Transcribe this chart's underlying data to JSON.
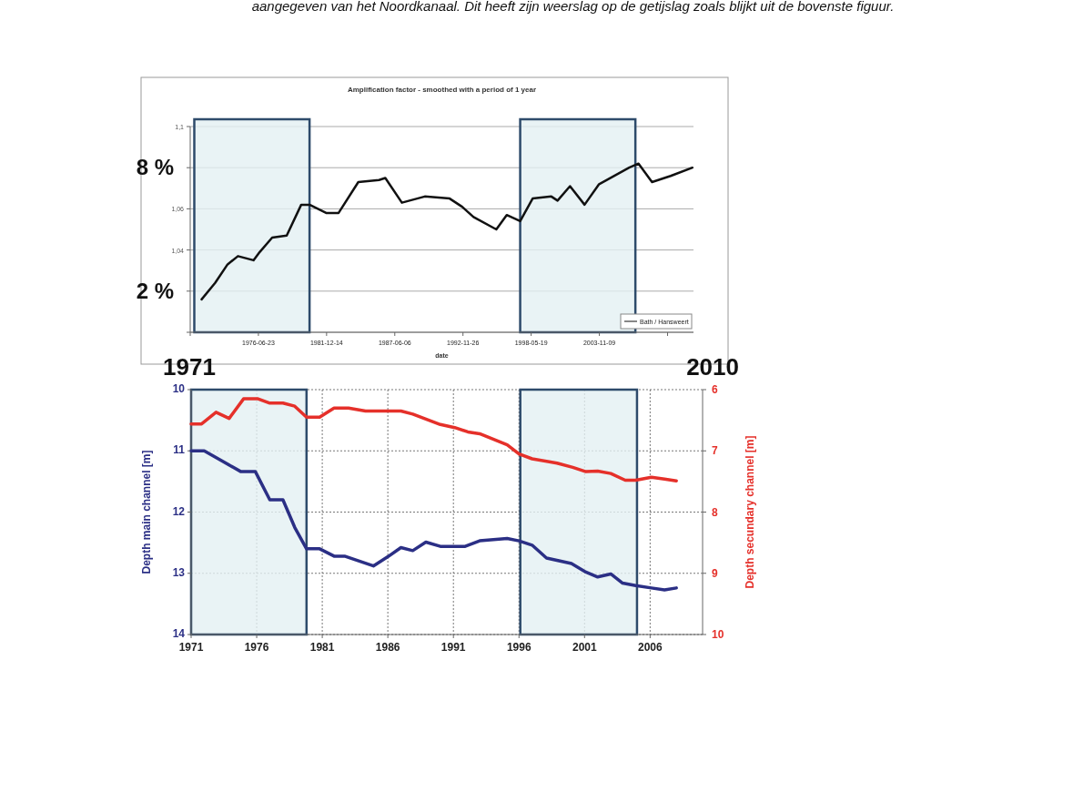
{
  "chart_data": [
    {
      "type": "line",
      "title": "Amplification factor - smoothed with a period of 1 year",
      "xlabel": "date",
      "legend": "bottom right",
      "grid": "y",
      "line_style": "solid",
      "annotations": [
        "aangegeven van het Noordkanaal. Dit heeft zijn weerslag op de getijslag zoals blijkt uit de bovenste figuur.",
        "1971",
        "2010",
        "8 %",
        "2 %"
      ],
      "xlim": [
        "1971-01-01",
        "2011-06-01"
      ],
      "xticks": [
        {
          "value": "1971-01-01",
          "label": null
        },
        "1976-06-23",
        "1981-12-14",
        "1987-06-06",
        "1992-11-26",
        "1998-05-19",
        "2003-11-09",
        {
          "value": "2009-05-02",
          "label": null
        }
      ],
      "ylim": [
        1.0,
        1.1
      ],
      "yticks": [
        {
          "value": 1.0,
          "label": null
        },
        {
          "value": 1.02,
          "label": null
        },
        {
          "value": 1.04,
          "label": "1,04"
        },
        {
          "value": 1.06,
          "label": "1,06"
        },
        {
          "value": 1.08,
          "label": null
        },
        {
          "value": 1.1,
          "label": "1,1"
        }
      ],
      "bands": [
        {
          "axis": "x",
          "from": "1971-05-01",
          "to": "1980-08-01",
          "color": "#e3f0f3"
        },
        {
          "axis": "x",
          "from": "1997-07-01",
          "to": "2006-10-01",
          "color": "#e3f0f3"
        }
      ],
      "series": [
        {
          "name": "Bath / Hansweert",
          "color": "#111111",
          "x": [
            "1971-12",
            "1973-01",
            "1974-01",
            "1974-11",
            "1976-02",
            "1976-08",
            "1977-08",
            "1978-10",
            "1979-12",
            "1980-08",
            "1981-12",
            "1982-12",
            "1984-07",
            "1986-03",
            "1986-09",
            "1988-01",
            "1989-11",
            "1991-11",
            "1992-11",
            "1993-10",
            "1995-08",
            "1996-06",
            "1997-07",
            "1998-07",
            "2000-01",
            "2000-07",
            "2001-07",
            "2002-09",
            "2003-11",
            "2006-04",
            "2007-01",
            "2008-02",
            "2009-08",
            "2011-05"
          ],
          "values": [
            1.016,
            1.024,
            1.033,
            1.037,
            1.035,
            1.039,
            1.046,
            1.047,
            1.062,
            1.062,
            1.058,
            1.058,
            1.073,
            1.074,
            1.075,
            1.063,
            1.066,
            1.065,
            1.061,
            1.056,
            1.05,
            1.057,
            1.054,
            1.065,
            1.066,
            1.064,
            1.071,
            1.062,
            1.072,
            1.08,
            1.082,
            1.073,
            1.076,
            1.08
          ]
        }
      ]
    },
    {
      "type": "line",
      "ylabel": "Depth main channel [m]",
      "y2label": "Depth secundary channel [m]",
      "grid": true,
      "line_style": "solid",
      "xlim": [
        1971,
        2010
      ],
      "xticks": [
        1971,
        1976,
        1981,
        1986,
        1991,
        1996,
        2001,
        2006
      ],
      "ylim": [
        14,
        10
      ],
      "yticks": [
        10,
        11,
        12,
        13,
        14
      ],
      "y2lim": [
        10,
        6
      ],
      "y2ticks": [
        6,
        7,
        8,
        9,
        10
      ],
      "bands": [
        {
          "axis": "x",
          "from": 1971,
          "to": 1979.8,
          "color": "#e3f0f3"
        },
        {
          "axis": "x",
          "from": 1996.1,
          "to": 2005,
          "color": "#e3f0f3"
        }
      ],
      "series": [
        {
          "color": "#2b2f85",
          "x": [
            1971,
            1972,
            1974.8,
            1975.9,
            1977,
            1978,
            1978.9,
            1979.8,
            1980.8,
            1981.9,
            1982.7,
            1984.9,
            1986,
            1987,
            1987.9,
            1988.9,
            1990,
            1991.9,
            1993,
            1995.1,
            1996,
            1997,
            1998.1,
            2000,
            2001.1,
            2002,
            2003,
            2003.9,
            2004.9,
            2006.1,
            2007.1,
            2008
          ],
          "values": [
            11.0,
            11.0,
            11.34,
            11.34,
            11.8,
            11.8,
            12.25,
            12.6,
            12.6,
            12.72,
            12.72,
            12.88,
            12.73,
            12.58,
            12.63,
            12.49,
            12.56,
            12.56,
            12.47,
            12.43,
            12.47,
            12.54,
            12.75,
            12.84,
            12.98,
            13.06,
            13.01,
            13.16,
            13.2,
            13.24,
            13.27,
            13.24
          ]
        },
        {
          "color": "#e5302a",
          "axis": "y2",
          "x": [
            1971,
            1971.8,
            1972.9,
            1973.9,
            1975,
            1976.1,
            1977,
            1978,
            1978.9,
            1979.8,
            1980.8,
            1981.9,
            1983,
            1984.3,
            1987,
            1987.9,
            1990,
            1991.1,
            1992.1,
            1993,
            1995.1,
            1996,
            1997,
            1998.9,
            2000.1,
            2001.1,
            2002,
            2003,
            2004.1,
            2004.9,
            2006.1,
            2007.1,
            2008
          ],
          "values": [
            6.56,
            6.56,
            6.37,
            6.47,
            6.15,
            6.15,
            6.22,
            6.22,
            6.27,
            6.45,
            6.45,
            6.3,
            6.3,
            6.35,
            6.35,
            6.4,
            6.57,
            6.62,
            6.69,
            6.72,
            6.9,
            7.05,
            7.13,
            7.2,
            7.27,
            7.34,
            7.33,
            7.37,
            7.48,
            7.48,
            7.43,
            7.46,
            7.49
          ]
        }
      ]
    }
  ]
}
